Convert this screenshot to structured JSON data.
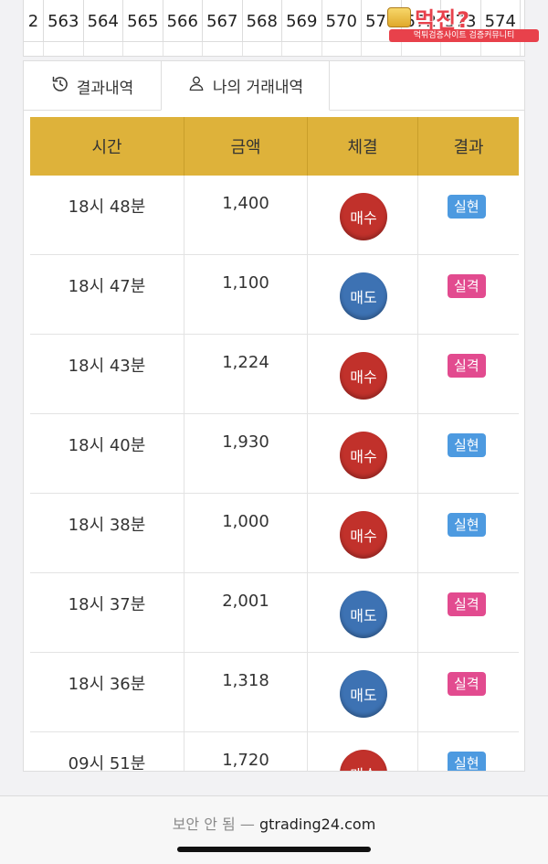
{
  "number_strip": [
    "2",
    "563",
    "564",
    "565",
    "566",
    "567",
    "568",
    "569",
    "570",
    "571",
    "572",
    "573",
    "574"
  ],
  "watermark": {
    "title": "먹진?",
    "subtitle": "먹튀검증사이트 검증커뮤니티"
  },
  "tabs": [
    {
      "label": "결과내역",
      "icon": "history-icon"
    },
    {
      "label": "나의 거래내역",
      "icon": "user-icon"
    }
  ],
  "table": {
    "headers": [
      "시간",
      "금액",
      "체결",
      "결과"
    ],
    "rows": [
      {
        "time": "18시 48분",
        "amount": "1,400",
        "trade": "매수",
        "trade_type": "buy",
        "result": "실현",
        "result_type": "win"
      },
      {
        "time": "18시 47분",
        "amount": "1,100",
        "trade": "매도",
        "trade_type": "sell",
        "result": "실격",
        "result_type": "lose"
      },
      {
        "time": "18시 43분",
        "amount": "1,224",
        "trade": "매수",
        "trade_type": "buy",
        "result": "실격",
        "result_type": "lose"
      },
      {
        "time": "18시 40분",
        "amount": "1,930",
        "trade": "매수",
        "trade_type": "buy",
        "result": "실현",
        "result_type": "win"
      },
      {
        "time": "18시 38분",
        "amount": "1,000",
        "trade": "매수",
        "trade_type": "buy",
        "result": "실현",
        "result_type": "win"
      },
      {
        "time": "18시 37분",
        "amount": "2,001",
        "trade": "매도",
        "trade_type": "sell",
        "result": "실격",
        "result_type": "lose"
      },
      {
        "time": "18시 36분",
        "amount": "1,318",
        "trade": "매도",
        "trade_type": "sell",
        "result": "실격",
        "result_type": "lose"
      },
      {
        "time": "09시 51분",
        "amount": "1,720",
        "trade": "매수",
        "trade_type": "buy",
        "result": "실현",
        "result_type": "win"
      }
    ]
  },
  "colors": {
    "header_gold": "#deb23a",
    "buy_red": "#c1312b",
    "sell_blue": "#3d72b3",
    "win_badge": "#4d9ae0",
    "lose_badge": "#e24b8f"
  },
  "browser": {
    "insecure_label": "보안 안 됨",
    "separator": "—",
    "domain": "gtrading24.com"
  }
}
